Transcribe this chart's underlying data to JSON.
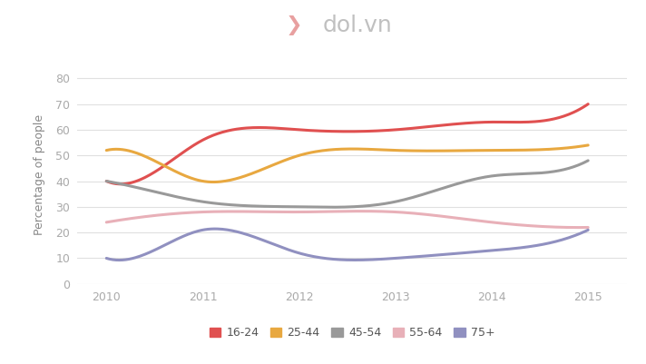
{
  "series": {
    "16-24": {
      "x": [
        2010,
        2010.6,
        2011,
        2012,
        2013,
        2014,
        2014.8,
        2015
      ],
      "y": [
        40,
        46,
        56,
        60,
        60,
        63,
        66,
        70
      ],
      "color": "#e05050"
    },
    "25-44": {
      "x": [
        2010,
        2010.6,
        2011,
        2012,
        2013,
        2014,
        2014.8,
        2015
      ],
      "y": [
        52,
        46,
        40,
        50,
        52,
        52,
        53,
        54
      ],
      "color": "#e8a840"
    },
    "45-54": {
      "x": [
        2010,
        2010.6,
        2011,
        2012,
        2013,
        2014,
        2014.8,
        2015
      ],
      "y": [
        40,
        35,
        32,
        30,
        32,
        42,
        45,
        48
      ],
      "color": "#999999"
    },
    "55-64": {
      "x": [
        2010,
        2010.6,
        2011,
        2012,
        2013,
        2014,
        2014.8,
        2015
      ],
      "y": [
        24,
        27,
        28,
        28,
        28,
        24,
        22,
        22
      ],
      "color": "#e8b0b8"
    },
    "75+": {
      "x": [
        2010,
        2010.6,
        2011,
        2012,
        2013,
        2014,
        2014.8,
        2015
      ],
      "y": [
        10,
        15,
        21,
        12,
        10,
        13,
        18,
        21
      ],
      "color": "#9090c0"
    }
  },
  "ylabel": "Percentage of people",
  "ylim": [
    0,
    85
  ],
  "yticks": [
    0,
    10,
    20,
    30,
    40,
    50,
    60,
    70,
    80
  ],
  "xlim": [
    2009.7,
    2015.4
  ],
  "xticks": [
    2010,
    2011,
    2012,
    2013,
    2014,
    2015
  ],
  "background_color": "#ffffff",
  "plot_bg_color": "#ffffff",
  "grid_color": "#e0e0e0",
  "line_width": 2.2,
  "logo_text": "dol.vn",
  "logo_color": "#c0c0c0",
  "logo_fontsize": 18
}
